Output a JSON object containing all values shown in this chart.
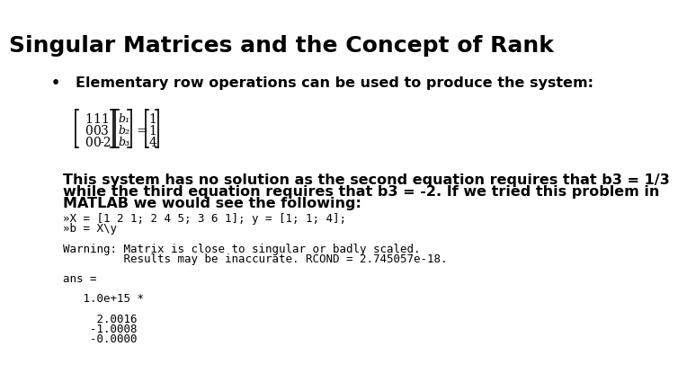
{
  "title": "Singular Matrices and the Concept of Rank",
  "title_fontsize": 18,
  "title_fontweight": "bold",
  "bg_color": "#ffffff",
  "bullet_char": "•",
  "bullet_text": "   Elementary row operations can be used to produce the system:",
  "bullet_fontsize": 11.5,
  "paragraph_lines": [
    "This system has no solution as the second equation requires that b3 = 1/3",
    "while the third equation requires that b3 = -2. If we tried this problem in",
    "MATLAB we would see the following:"
  ],
  "paragraph_fontsize": 11.5,
  "code_lines": [
    "»X = [1 2 1; 2 4 5; 3 6 1]; y = [1; 1; 4];",
    "»b = X\\y",
    "",
    "Warning: Matrix is close to singular or badly scaled.",
    "         Results may be inaccurate. RCOND = 2.745057e-18.",
    "",
    "ans =",
    "",
    "   1.0e+15 *",
    "",
    "     2.0016",
    "    -1.0008",
    "    -0.0000"
  ],
  "code_fontsize": 9.0,
  "matrix_rows": [
    [
      "1",
      "1",
      "1"
    ],
    [
      "0",
      "0",
      "3"
    ],
    [
      "0",
      "0",
      "-2"
    ]
  ],
  "b_rows": [
    "b₁",
    "b₂",
    "b₃"
  ],
  "rhs_rows": [
    "1",
    "1",
    "4"
  ],
  "matrix_fontsize": 10.0
}
